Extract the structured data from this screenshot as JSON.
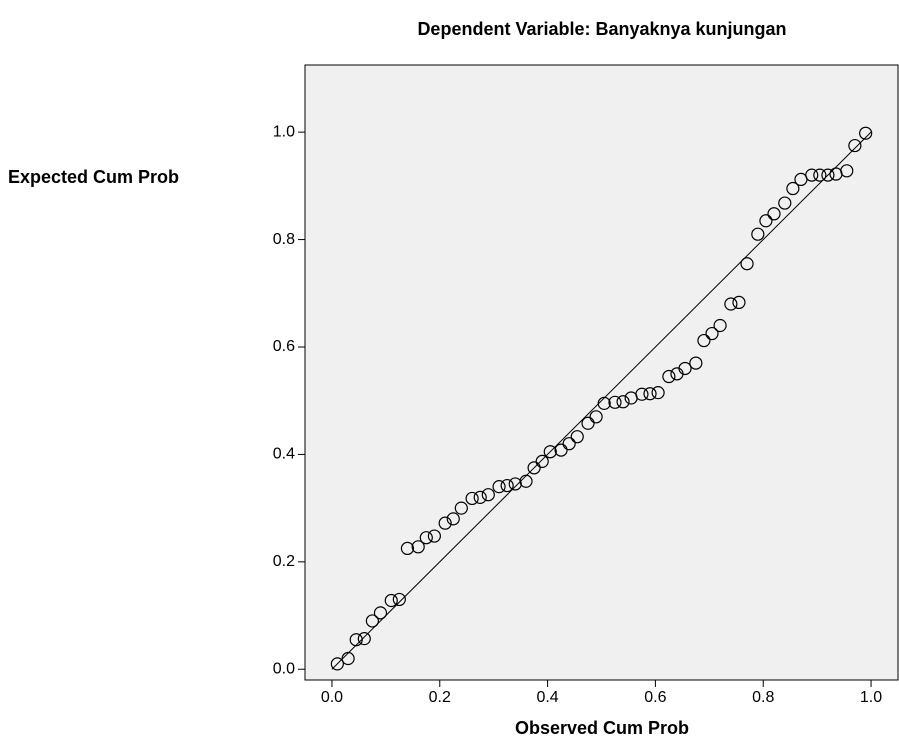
{
  "chart_data": {
    "type": "scatter",
    "title": "Dependent Variable: Banyaknya kunjungan",
    "x_label": "Observed Cum Prob",
    "y_label": "Expected Cum Prob",
    "xlim": [
      -0.05,
      1.05
    ],
    "ylim": [
      -0.02,
      1.125
    ],
    "xticks": [
      {
        "value": 0,
        "label": "0.0"
      },
      {
        "value": 0.2,
        "label": "0.2"
      },
      {
        "value": 0.4,
        "label": "0.4"
      },
      {
        "value": 0.6,
        "label": "0.6"
      },
      {
        "value": 0.8,
        "label": "0.8"
      },
      {
        "value": 1,
        "label": "1.0"
      }
    ],
    "yticks": [
      {
        "value": 0,
        "label": "0.0"
      },
      {
        "value": 0.2,
        "label": "0.2"
      },
      {
        "value": 0.4,
        "label": "0.4"
      },
      {
        "value": 0.6,
        "label": "0.6"
      },
      {
        "value": 0.8,
        "label": "0.8"
      },
      {
        "value": 1,
        "label": "1.0"
      }
    ],
    "background": "#f0f0f0",
    "series": [
      {
        "color": "#000000",
        "x": [
          0.01,
          0.03,
          0.045,
          0.06,
          0.075,
          0.09,
          0.11,
          0.125,
          0.14,
          0.16,
          0.175,
          0.19,
          0.21,
          0.225,
          0.24,
          0.26,
          0.275,
          0.29,
          0.31,
          0.325,
          0.34,
          0.36,
          0.375,
          0.39,
          0.405,
          0.425,
          0.44,
          0.455,
          0.475,
          0.49,
          0.505,
          0.525,
          0.54,
          0.555,
          0.575,
          0.59,
          0.605,
          0.625,
          0.64,
          0.655,
          0.675,
          0.69,
          0.705,
          0.72,
          0.74,
          0.755,
          0.77,
          0.79,
          0.805,
          0.82,
          0.84,
          0.855,
          0.87,
          0.89,
          0.905,
          0.92,
          0.935,
          0.955,
          0.97,
          0.99
        ],
        "values": [
          0.01,
          0.02,
          0.055,
          0.057,
          0.09,
          0.105,
          0.128,
          0.13,
          0.225,
          0.228,
          0.245,
          0.248,
          0.272,
          0.28,
          0.3,
          0.318,
          0.32,
          0.325,
          0.34,
          0.342,
          0.345,
          0.35,
          0.375,
          0.387,
          0.405,
          0.408,
          0.42,
          0.433,
          0.458,
          0.47,
          0.495,
          0.497,
          0.498,
          0.505,
          0.512,
          0.513,
          0.515,
          0.545,
          0.55,
          0.56,
          0.57,
          0.612,
          0.625,
          0.64,
          0.68,
          0.683,
          0.755,
          0.81,
          0.835,
          0.848,
          0.868,
          0.895,
          0.912,
          0.92,
          0.92,
          0.92,
          0.922,
          0.928,
          0.975,
          0.998
        ]
      }
    ]
  }
}
